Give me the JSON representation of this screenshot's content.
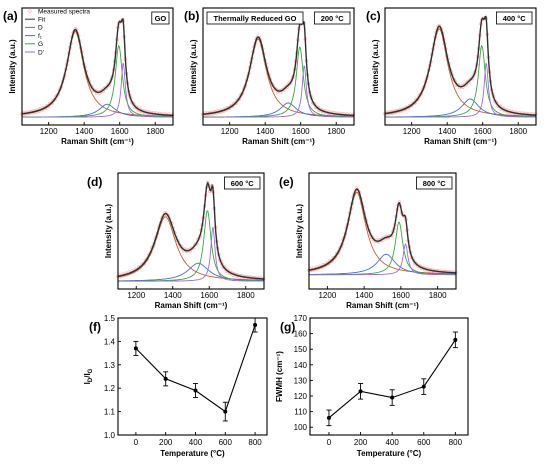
{
  "chart_data": [
    {
      "type": "line",
      "panel": "(a)",
      "annotation": "GO",
      "xlabel": "Raman Shift (cm⁻¹)",
      "ylabel": "Intensity (a.u.)",
      "xlim": [
        1050,
        1900
      ],
      "x_ticks": [
        1200,
        1400,
        1600,
        1800
      ],
      "legend": [
        "Measured spectra",
        "Fit",
        "D",
        "f₁",
        "G",
        "D'"
      ],
      "legend_position": "top-left",
      "baseline": 0.06,
      "peaks": {
        "D": [
          1350,
          0.66,
          58
        ],
        "f1": [
          1530,
          0.1,
          55
        ],
        "G": [
          1595,
          0.55,
          24
        ],
        "Dp": [
          1620,
          0.42,
          14
        ]
      }
    },
    {
      "type": "line",
      "panel": "(b)",
      "annotation": "200 °C",
      "annotation_left": "Thermally Reduced GO",
      "xlabel": "Raman Shift (cm⁻¹)",
      "ylabel": "Intensity (a.u.)",
      "xlim": [
        1050,
        1900
      ],
      "x_ticks": [
        1200,
        1400,
        1600,
        1800
      ],
      "baseline": 0.06,
      "peaks": {
        "D": [
          1360,
          0.6,
          58
        ],
        "f1": [
          1530,
          0.11,
          55
        ],
        "G": [
          1595,
          0.54,
          24
        ],
        "Dp": [
          1620,
          0.4,
          14
        ]
      }
    },
    {
      "type": "line",
      "panel": "(c)",
      "annotation": "400 °C",
      "xlabel": "Raman Shift (cm⁻¹)",
      "ylabel": "Intensity (a.u.)",
      "xlim": [
        1050,
        1900
      ],
      "x_ticks": [
        1200,
        1400,
        1600,
        1800
      ],
      "baseline": 0.06,
      "peaks": {
        "D": [
          1355,
          0.68,
          60
        ],
        "f1": [
          1530,
          0.14,
          58
        ],
        "G": [
          1595,
          0.55,
          24
        ],
        "Dp": [
          1620,
          0.42,
          14
        ]
      }
    },
    {
      "type": "line",
      "panel": "(d)",
      "annotation": "600 °C",
      "xlabel": "Raman Shift (cm⁻¹)",
      "ylabel": "Intensity (a.u.)",
      "xlim": [
        1100,
        1900
      ],
      "x_ticks": [
        1200,
        1400,
        1600,
        1800
      ],
      "baseline": 0.06,
      "peaks": {
        "D": [
          1360,
          0.5,
          70
        ],
        "f1": [
          1540,
          0.14,
          70
        ],
        "G": [
          1590,
          0.55,
          24
        ],
        "Dp": [
          1620,
          0.42,
          14
        ]
      }
    },
    {
      "type": "line",
      "panel": "(e)",
      "annotation": "800 °C",
      "xlabel": "Raman Shift (cm⁻¹)",
      "ylabel": "Intensity (a.u.)",
      "xlim": [
        1100,
        1900
      ],
      "x_ticks": [
        1200,
        1400,
        1600,
        1800
      ],
      "baseline": 0.11,
      "peaks": {
        "D": [
          1360,
          0.64,
          60
        ],
        "f1": [
          1520,
          0.16,
          60
        ],
        "G": [
          1590,
          0.41,
          25
        ],
        "Dp": [
          1625,
          0.24,
          16
        ]
      }
    },
    {
      "type": "line",
      "panel": "(f)",
      "xlabel": "Temperature (°C)",
      "ylabel": "ID/IG",
      "x": [
        0,
        200,
        400,
        600,
        800
      ],
      "y": [
        1.37,
        1.24,
        1.19,
        1.1,
        1.47
      ],
      "err": [
        0.03,
        0.03,
        0.03,
        0.04,
        0.03
      ],
      "xlim": [
        -120,
        880
      ],
      "ylim": [
        1.0,
        1.5
      ],
      "x_ticks": [
        0,
        200,
        400,
        600,
        800
      ],
      "y_ticks": [
        "1.0",
        "1.1",
        "1.2",
        "1.3",
        "1.4",
        "1.5"
      ]
    },
    {
      "type": "line",
      "panel": "(g)",
      "xlabel": "Temperature (°C)",
      "ylabel": "FWMH (cm⁻¹)",
      "x": [
        0,
        200,
        400,
        600,
        800
      ],
      "y": [
        106,
        123,
        119,
        126,
        156
      ],
      "err": [
        5,
        5,
        5,
        5,
        5
      ],
      "xlim": [
        -120,
        880
      ],
      "ylim": [
        95,
        170
      ],
      "x_ticks": [
        0,
        200,
        400,
        600,
        800
      ],
      "y_ticks": [
        "100",
        "110",
        "120",
        "130",
        "140",
        "150",
        "160",
        "170"
      ]
    }
  ],
  "colors": {
    "measured": "#f4b6b6",
    "fit": "#2f2f2f",
    "D": "#c0603a",
    "f1": "#4a6fc4",
    "G": "#3fa34a",
    "Dp": "#9b6fd0",
    "axis": "#000000"
  }
}
